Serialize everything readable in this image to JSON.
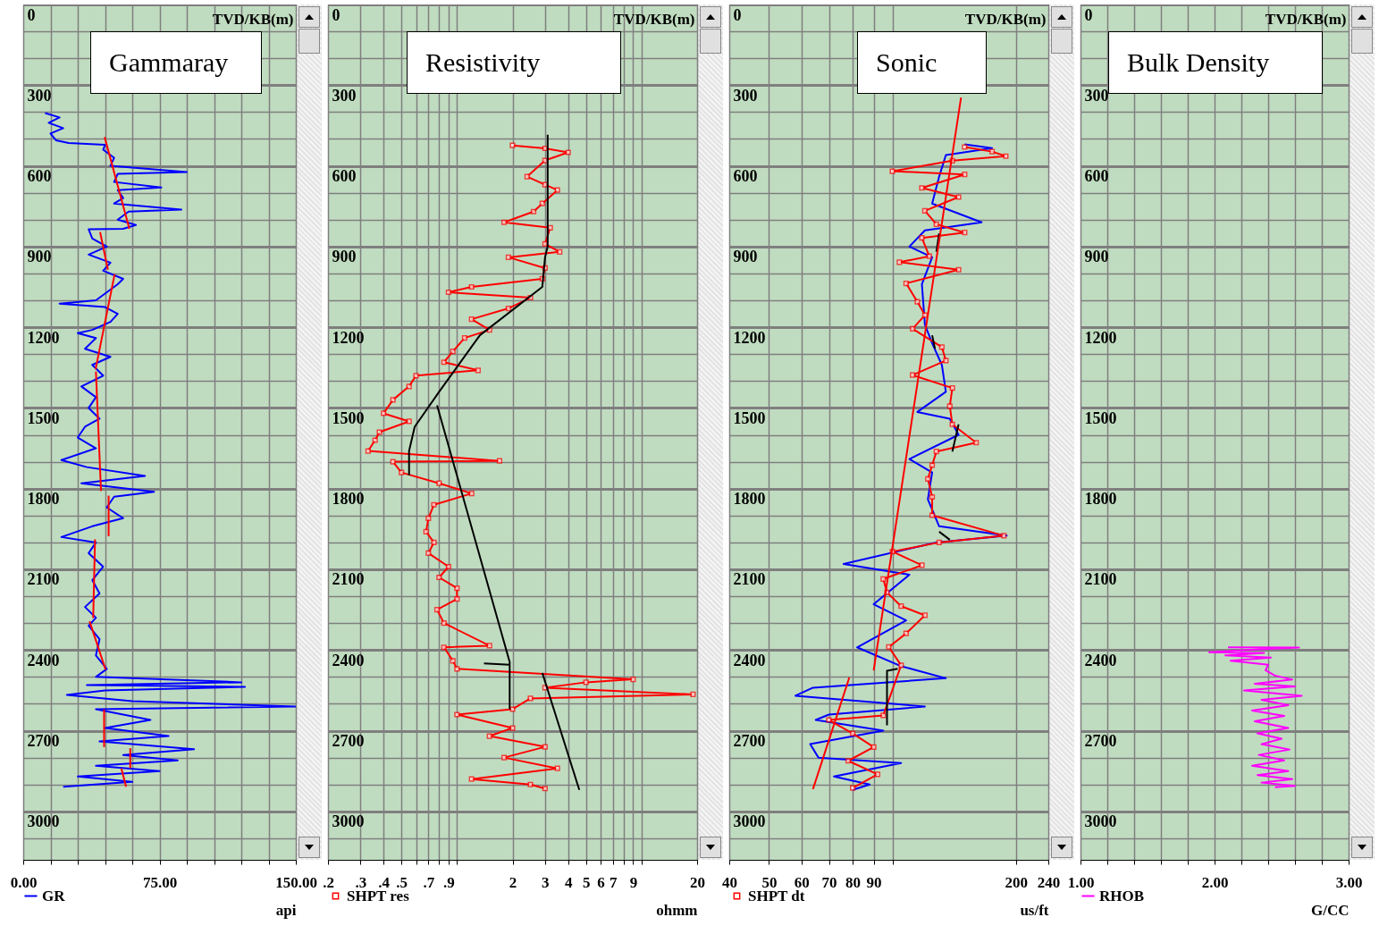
{
  "chart_data": [
    {
      "type": "line",
      "title": "Gammaray",
      "ylabel": "TVD/KB(m)",
      "xlabel": "api",
      "xlim": [
        0,
        150
      ],
      "ylim": [
        3180,
        0
      ],
      "xticks": [
        {
          "value": 0,
          "label": "0.00"
        },
        {
          "value": 15,
          "label": null
        },
        {
          "value": 30,
          "label": null
        },
        {
          "value": 45,
          "label": null
        },
        {
          "value": 60,
          "label": null
        },
        {
          "value": 75,
          "label": "75.00"
        },
        {
          "value": 90,
          "label": null
        },
        {
          "value": 105,
          "label": null
        },
        {
          "value": 120,
          "label": null
        },
        {
          "value": 135,
          "label": null
        },
        {
          "value": 150,
          "label": "150.00"
        }
      ],
      "yticks": [
        0,
        {
          "value": 100,
          "label": null
        },
        {
          "value": 200,
          "label": null
        },
        300,
        {
          "value": 400,
          "label": null
        },
        {
          "value": 500,
          "label": null
        },
        600,
        {
          "value": 700,
          "label": null
        },
        {
          "value": 800,
          "label": null
        },
        900,
        {
          "value": 1000,
          "label": null
        },
        {
          "value": 1100,
          "label": null
        },
        1200,
        {
          "value": 1300,
          "label": null
        },
        {
          "value": 1400,
          "label": null
        },
        1500,
        {
          "value": 1600,
          "label": null
        },
        {
          "value": 1700,
          "label": null
        },
        1800,
        {
          "value": 1900,
          "label": null
        },
        {
          "value": 2000,
          "label": null
        },
        2100,
        {
          "value": 2200,
          "label": null
        },
        {
          "value": 2300,
          "label": null
        },
        2400,
        {
          "value": 2500,
          "label": null
        },
        {
          "value": 2600,
          "label": null
        },
        2700,
        {
          "value": 2800,
          "label": null
        },
        {
          "value": 2900,
          "label": null
        },
        3000,
        {
          "value": 3100,
          "label": null
        }
      ],
      "grid": true,
      "legend": "bottom left",
      "series": [
        {
          "name": "GR",
          "color": "#0000ff",
          "x": [
            12,
            20,
            14,
            22,
            15,
            18,
            25,
            45,
            44,
            50,
            48,
            90,
            52,
            50,
            76,
            52,
            55,
            50,
            87,
            58,
            52,
            62,
            55,
            36,
            38,
            46,
            36,
            48,
            44,
            55,
            52,
            46,
            40,
            20,
            45,
            52,
            48,
            38,
            30,
            40,
            34,
            48,
            38,
            44,
            32,
            40,
            36,
            42,
            34,
            30,
            40,
            21,
            35,
            67,
            32,
            72,
            50,
            46,
            55,
            38,
            21,
            40,
            36,
            44,
            38,
            42,
            34,
            40,
            36,
            42,
            40,
            46,
            40,
            120,
            35,
            122,
            45,
            24,
            60,
            150,
            40,
            70,
            45,
            80,
            42,
            94,
            55,
            85,
            40,
            75,
            30,
            60,
            22
          ],
          "values": [
            404,
            420,
            440,
            460,
            480,
            505,
            515,
            522,
            540,
            570,
            600,
            623,
            630,
            660,
            680,
            690,
            720,
            740,
            763,
            770,
            800,
            820,
            834,
            836,
            870,
            900,
            930,
            960,
            990,
            1020,
            1040,
            1070,
            1100,
            1112,
            1125,
            1150,
            1180,
            1210,
            1222,
            1240,
            1280,
            1310,
            1340,
            1380,
            1420,
            1460,
            1500,
            1540,
            1570,
            1610,
            1650,
            1694,
            1720,
            1753,
            1780,
            1812,
            1830,
            1870,
            1910,
            1940,
            1980,
            2000,
            2040,
            2090,
            2140,
            2190,
            2240,
            2280,
            2310,
            2360,
            2420,
            2470,
            2500,
            2520,
            2530,
            2537,
            2550,
            2567,
            2590,
            2610,
            2620,
            2660,
            2690,
            2720,
            2740,
            2769,
            2790,
            2810,
            2830,
            2850,
            2870,
            2890,
            2908
          ]
        },
        {
          "color": "#ff0000",
          "x": [
            44.8,
            58.4,
            null,
            42.3,
            46.6,
            null,
            50.3,
            39.8,
            null,
            40,
            42.8,
            null,
            47,
            47,
            null,
            39.5,
            38.5,
            null,
            36.5,
            45.3,
            null,
            44.5,
            44.5,
            null,
            58.9,
            58.9,
            null,
            54,
            56.6
          ],
          "values": [
            493,
            834,
            null,
            846,
            986,
            null,
            1003,
            1357,
            null,
            1365,
            1809,
            null,
            1826,
            1977,
            null,
            1989,
            2281,
            null,
            2293,
            2473,
            null,
            2621,
            2761,
            null,
            2765,
            2840,
            null,
            2840,
            2908
          ]
        }
      ]
    },
    {
      "type": "line",
      "title": "Resistivity",
      "ylabel": "TVD/KB(m)",
      "xlabel": "ohmm",
      "xlim": [
        0.2,
        20
      ],
      "ylim": [
        3180,
        0
      ],
      "log": "x",
      "xticks": [
        {
          "value": 0.2,
          "label": ".2"
        },
        {
          "value": 0.3,
          "label": ".3"
        },
        {
          "value": 0.4,
          "label": ".4"
        },
        {
          "value": 0.5,
          "label": ".5"
        },
        {
          "value": 0.6,
          "label": null
        },
        {
          "value": 0.7,
          "label": ".7"
        },
        {
          "value": 0.8,
          "label": null
        },
        {
          "value": 0.9,
          "label": ".9"
        },
        {
          "value": 1,
          "label": null
        },
        2,
        3,
        4,
        5,
        6,
        7,
        {
          "value": 8,
          "label": null
        },
        9,
        {
          "value": 10,
          "label": null
        },
        20
      ],
      "yticks": [
        0,
        {
          "value": 100,
          "label": null
        },
        {
          "value": 200,
          "label": null
        },
        300,
        {
          "value": 400,
          "label": null
        },
        {
          "value": 500,
          "label": null
        },
        600,
        {
          "value": 700,
          "label": null
        },
        {
          "value": 800,
          "label": null
        },
        900,
        {
          "value": 1000,
          "label": null
        },
        {
          "value": 1100,
          "label": null
        },
        1200,
        {
          "value": 1300,
          "label": null
        },
        {
          "value": 1400,
          "label": null
        },
        1500,
        {
          "value": 1600,
          "label": null
        },
        {
          "value": 1700,
          "label": null
        },
        1800,
        {
          "value": 1900,
          "label": null
        },
        {
          "value": 2000,
          "label": null
        },
        2100,
        {
          "value": 2200,
          "label": null
        },
        {
          "value": 2300,
          "label": null
        },
        2400,
        {
          "value": 2500,
          "label": null
        },
        {
          "value": 2600,
          "label": null
        },
        2700,
        {
          "value": 2800,
          "label": null
        },
        {
          "value": 2900,
          "label": null
        },
        3000,
        {
          "value": 3100,
          "label": null
        }
      ],
      "grid": true,
      "legend": "bottom left",
      "series": [
        {
          "name": "SHPT res",
          "color": "#ff0000",
          "marker": "square",
          "x": [
            2.0,
            3.0,
            4.0,
            3.0,
            2.4,
            3.0,
            3.5,
            2.9,
            2.6,
            1.8,
            3.2,
            3.0,
            3.6,
            1.9,
            3.0,
            2.9,
            1.2,
            0.9,
            2.5,
            1.9,
            1.2,
            1.5,
            1.1,
            0.95,
            0.85,
            1.3,
            0.6,
            0.55,
            0.45,
            0.4,
            0.55,
            0.38,
            0.36,
            0.33,
            1.7,
            0.45,
            0.5,
            0.8,
            1.2,
            0.75,
            0.7,
            0.68,
            0.75,
            0.7,
            0.9,
            0.8,
            1.0,
            1.0,
            0.78,
            0.85,
            1.5,
            0.85,
            0.95,
            1.0,
            9.0,
            5,
            3,
            19,
            2.5,
            2.0,
            1.0,
            2.0,
            1.5,
            3.0,
            1.8,
            3.5,
            1.2,
            2.5,
            3.0
          ],
          "values": [
            524,
            535,
            550,
            580,
            640,
            670,
            690,
            740,
            770,
            810,
            830,
            890,
            920,
            940,
            980,
            1020,
            1050,
            1070,
            1090,
            1130,
            1170,
            1210,
            1240,
            1290,
            1330,
            1360,
            1380,
            1420,
            1470,
            1520,
            1550,
            1590,
            1620,
            1660,
            1697,
            1700,
            1740,
            1780,
            1818,
            1860,
            1910,
            1960,
            2000,
            2040,
            2090,
            2130,
            2170,
            2210,
            2250,
            2300,
            2384,
            2390,
            2440,
            2470,
            2509,
            2520,
            2540,
            2565,
            2580,
            2620,
            2640,
            2690,
            2720,
            2760,
            2800,
            2840,
            2880,
            2900,
            2915
          ]
        },
        {
          "color": "#000000",
          "x": [
            3.1,
            3.1,
            3.0,
            2.9,
            1.33,
            0.8,
            0.59,
            0.55,
            0.55,
            null,
            0.78,
            1.93,
            1.93,
            null,
            1.4,
            1.93,
            null,
            2.9,
            4.6
          ],
          "values": [
            484,
            900,
            940,
            1050,
            1230,
            1440,
            1570,
            1660,
            1750,
            null,
            1490,
            2445,
            2620,
            null,
            2450,
            2455,
            null,
            2485,
            2920
          ]
        }
      ]
    },
    {
      "type": "line",
      "title": "Sonic",
      "ylabel": "TVD/KB(m)",
      "xlabel": "us/ft",
      "xlim": [
        40,
        240
      ],
      "ylim": [
        3180,
        0
      ],
      "log": "x",
      "xticks": [
        40,
        50,
        60,
        70,
        80,
        90,
        {
          "value": 100,
          "label": null
        },
        200,
        240
      ],
      "yticks": [
        0,
        {
          "value": 100,
          "label": null
        },
        {
          "value": 200,
          "label": null
        },
        300,
        {
          "value": 400,
          "label": null
        },
        {
          "value": 500,
          "label": null
        },
        600,
        {
          "value": 700,
          "label": null
        },
        {
          "value": 800,
          "label": null
        },
        900,
        {
          "value": 1000,
          "label": null
        },
        {
          "value": 1100,
          "label": null
        },
        1200,
        {
          "value": 1300,
          "label": null
        },
        {
          "value": 1400,
          "label": null
        },
        1500,
        {
          "value": 1600,
          "label": null
        },
        {
          "value": 1700,
          "label": null
        },
        1800,
        {
          "value": 1900,
          "label": null
        },
        {
          "value": 2000,
          "label": null
        },
        2100,
        {
          "value": 2200,
          "label": null
        },
        {
          "value": 2300,
          "label": null
        },
        2400,
        {
          "value": 2500,
          "label": null
        },
        {
          "value": 2600,
          "label": null
        },
        2700,
        {
          "value": 2800,
          "label": null
        },
        {
          "value": 2900,
          "label": null
        },
        3000,
        {
          "value": 3100,
          "label": null
        }
      ],
      "grid": true,
      "legend": "bottom left",
      "series": [
        {
          "color": "#0000ff",
          "x": [
            150,
            175,
            135,
            130,
            125,
            165,
            120,
            110,
            125,
            118,
            120,
            125,
            132,
            135,
            115,
            138,
            145,
            110,
            125,
            122,
            130,
            190,
            128,
            76,
            110,
            90,
            108,
            82,
            105,
            135,
            64,
            58,
            120,
            70,
            65,
            95,
            63,
            66,
            105,
            72,
            88,
            80
          ],
          "values": [
            520,
            534,
            560,
            640,
            740,
            810,
            840,
            900,
            940,
            1040,
            1190,
            1260,
            1340,
            1440,
            1515,
            1540,
            1600,
            1690,
            1740,
            1840,
            1940,
            1975,
            2000,
            2080,
            2120,
            2230,
            2290,
            2390,
            2460,
            2505,
            2540,
            2570,
            2610,
            2640,
            2660,
            2700,
            2750,
            2800,
            2820,
            2870,
            2900,
            2920
          ]
        },
        {
          "name": "SHPT dt",
          "color": "#ff0000",
          "marker": "square",
          "x": [
            150,
            175,
            189,
            140,
            100,
            150,
            118,
            145,
            120,
            128,
            150,
            118,
            123,
            104,
            145,
            108,
            115,
            120,
            112,
            132,
            135,
            112,
            140,
            138,
            140,
            160,
            128,
            125,
            122,
            125,
            125,
            187,
            130,
            100,
            118,
            95,
            97,
            105,
            120,
            108,
            98,
            105,
            95,
            70,
            80,
            90,
            78,
            92,
            80
          ],
          "values": [
            530,
            547,
            564,
            581,
            620,
            632,
            682,
            716,
            767,
            817,
            848,
            868,
            936,
            958,
            986,
            1037,
            1105,
            1155,
            1206,
            1274,
            1324,
            1378,
            1426,
            1493,
            1561,
            1629,
            1662,
            1713,
            1764,
            1831,
            1899,
            1975,
            2000,
            2034,
            2085,
            2136,
            2186,
            2237,
            2271,
            2338,
            2389,
            2457,
            2643,
            2660,
            2710,
            2761,
            2812,
            2862,
            2913
          ]
        },
        {
          "color": "#000000",
          "x": [
            130,
            128,
            null,
            125,
            127,
            null,
            145,
            140,
            null,
            130,
            138,
            null,
            103,
            97,
            97
          ],
          "values": [
            851,
            919,
            null,
            1230,
            1280,
            null,
            1561,
            1662,
            null,
            1960,
            1990,
            null,
            2470,
            2477,
            2680
          ]
        },
        {
          "color": "#ff0000",
          "x": [
            147,
            90,
            null,
            78.5,
            64
          ],
          "values": [
            346,
            2476,
            null,
            2502,
            2917
          ]
        }
      ]
    },
    {
      "type": "line",
      "title": "Bulk Density",
      "ylabel": "TVD/KB(m)",
      "xlabel": "G/CC",
      "xlim": [
        1,
        3
      ],
      "ylim": [
        3180,
        0
      ],
      "xticks": [
        {
          "value": 1,
          "label": "1.00"
        },
        {
          "value": 1.2,
          "label": null
        },
        {
          "value": 1.4,
          "label": null
        },
        {
          "value": 1.6,
          "label": null
        },
        {
          "value": 1.8,
          "label": null
        },
        {
          "value": 2,
          "label": "2.00"
        },
        {
          "value": 2.2,
          "label": null
        },
        {
          "value": 2.4,
          "label": null
        },
        {
          "value": 2.6,
          "label": null
        },
        {
          "value": 2.8,
          "label": null
        },
        {
          "value": 3,
          "label": "3.00"
        }
      ],
      "yticks": [
        0,
        {
          "value": 100,
          "label": null
        },
        {
          "value": 200,
          "label": null
        },
        300,
        {
          "value": 400,
          "label": null
        },
        {
          "value": 500,
          "label": null
        },
        600,
        {
          "value": 700,
          "label": null
        },
        {
          "value": 800,
          "label": null
        },
        900,
        {
          "value": 1000,
          "label": null
        },
        {
          "value": 1100,
          "label": null
        },
        1200,
        {
          "value": 1300,
          "label": null
        },
        {
          "value": 1400,
          "label": null
        },
        1500,
        {
          "value": 1600,
          "label": null
        },
        {
          "value": 1700,
          "label": null
        },
        1800,
        {
          "value": 1900,
          "label": null
        },
        {
          "value": 2000,
          "label": null
        },
        2100,
        {
          "value": 2200,
          "label": null
        },
        {
          "value": 2300,
          "label": null
        },
        2400,
        {
          "value": 2500,
          "label": null
        },
        {
          "value": 2600,
          "label": null
        },
        2700,
        {
          "value": 2800,
          "label": null
        },
        {
          "value": 2900,
          "label": null
        },
        3000,
        {
          "value": 3100,
          "label": null
        }
      ],
      "grid": true,
      "legend": "bottom left",
      "series": [
        {
          "name": "RHOB",
          "color": "#ff00ff",
          "x": [
            2.1,
            2.63,
            2.3,
            1.96,
            2.37,
            2.08,
            2.42,
            2.12,
            2.4,
            2.38,
            2.45,
            2.58,
            2.3,
            2.6,
            2.22,
            2.65,
            2.35,
            2.55,
            2.28,
            2.52,
            2.3,
            2.55,
            2.32,
            2.5,
            2.35,
            2.56,
            2.33,
            2.52,
            2.28,
            2.55,
            2.32,
            2.58,
            2.35,
            2.6,
            2.45
          ],
          "values": [
            2390,
            2391,
            2398,
            2408,
            2411,
            2420,
            2428,
            2440,
            2455,
            2475,
            2495,
            2510,
            2525,
            2535,
            2550,
            2570,
            2585,
            2605,
            2625,
            2645,
            2665,
            2690,
            2710,
            2730,
            2750,
            2770,
            2790,
            2810,
            2830,
            2850,
            2865,
            2880,
            2893,
            2905,
            2910
          ]
        }
      ]
    }
  ]
}
